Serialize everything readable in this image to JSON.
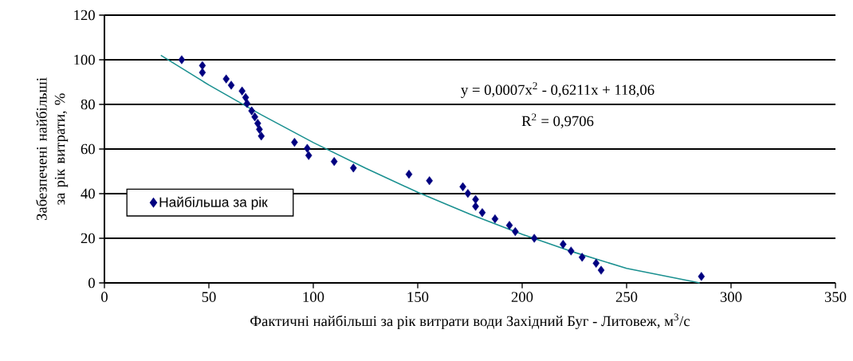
{
  "chart_data": {
    "type": "scatter",
    "xlabel": "Фактичні найбільші за рік витрати води Західний Буг - Литовеж, м$^{3}$/с",
    "ylabel": "Забезпечені найбільші за рік витрати, %",
    "annotations": [
      "y = 0,0007x$^{2}$ - 0,6211x + 118,06",
      "R$^{2}$ = 0,9706"
    ],
    "series": [
      {
        "name": "Найбільша за рік",
        "color": "#000080",
        "marker": "diamond",
        "x": [
          37,
          46.9,
          46.9,
          58.3,
          60.7,
          65.9,
          67.6,
          68.3,
          70.5,
          72,
          73.4,
          74.2,
          75.1,
          91,
          97.1,
          97.8,
          110,
          119.2,
          145.8,
          155.6,
          171.6,
          174,
          177.7,
          177.7,
          180.9,
          187,
          193.9,
          196.7,
          205.8,
          219.6,
          223.4,
          228.7,
          235.4,
          237.8,
          285.8
        ],
        "values": [
          100,
          97.4,
          94.3,
          91.4,
          88.6,
          86,
          83.1,
          80.4,
          77.1,
          74.4,
          71.5,
          68.8,
          65.8,
          63,
          60.3,
          57.1,
          54.4,
          51.5,
          48.7,
          45.8,
          43.1,
          40.1,
          37.4,
          34.3,
          31.5,
          28.7,
          25.8,
          23,
          20,
          17.3,
          14.3,
          11.5,
          8.8,
          5.7,
          2.9
        ]
      },
      {
        "type": "line",
        "color": "#1a9090",
        "marker": "none",
        "x": [
          27,
          50,
          75,
          100,
          125,
          150,
          175,
          200,
          225,
          250,
          285
        ],
        "values": [
          102,
          88.7,
          75.4,
          62.9,
          51.4,
          40.6,
          30.8,
          21.8,
          13.7,
          6.5,
          0
        ]
      }
    ],
    "xlim": [
      0,
      350
    ],
    "xticks": [
      0,
      50,
      100,
      150,
      200,
      250,
      300,
      350
    ],
    "ylim": [
      0,
      120
    ],
    "yticks": [
      0,
      20,
      40,
      60,
      80,
      100,
      120
    ],
    "grid": "y",
    "legend": "left"
  }
}
